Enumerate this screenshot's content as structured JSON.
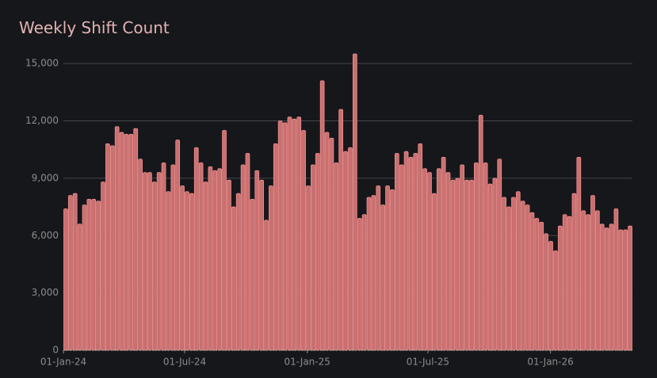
{
  "chart_data": {
    "type": "bar",
    "title": "Weekly Shift Count",
    "color": "#c96f6f",
    "edge_color": "#f29090",
    "grid": true,
    "x": [
      "2024-01-01",
      "2024-01-08",
      "2024-01-15",
      "2024-01-22",
      "2024-01-29",
      "2024-02-05",
      "2024-02-12",
      "2024-02-19",
      "2024-02-26",
      "2024-03-04",
      "2024-03-11",
      "2024-03-18",
      "2024-03-25",
      "2024-04-01",
      "2024-04-08",
      "2024-04-15",
      "2024-04-22",
      "2024-04-29",
      "2024-05-06",
      "2024-05-13",
      "2024-05-20",
      "2024-05-27",
      "2024-06-03",
      "2024-06-10",
      "2024-06-17",
      "2024-06-24",
      "2024-07-01",
      "2024-07-08",
      "2024-07-15",
      "2024-07-22",
      "2024-07-29",
      "2024-08-05",
      "2024-08-12",
      "2024-08-19",
      "2024-08-26",
      "2024-09-02",
      "2024-09-09",
      "2024-09-16",
      "2024-09-23",
      "2024-09-30",
      "2024-10-07",
      "2024-10-14",
      "2024-10-21",
      "2024-10-28",
      "2024-11-04",
      "2024-11-11",
      "2024-11-18",
      "2024-11-25",
      "2024-12-02",
      "2024-12-09",
      "2024-12-16",
      "2024-12-23",
      "2024-12-30",
      "2025-01-06",
      "2025-01-13",
      "2025-01-20",
      "2025-01-27",
      "2025-02-03",
      "2025-02-10",
      "2025-02-17",
      "2025-02-24",
      "2025-03-03",
      "2025-03-10",
      "2025-03-17",
      "2025-03-24",
      "2025-03-31",
      "2025-04-07",
      "2025-04-14",
      "2025-04-21",
      "2025-04-28",
      "2025-05-05",
      "2025-05-12",
      "2025-05-19",
      "2025-05-26",
      "2025-06-02",
      "2025-06-09",
      "2025-06-16",
      "2025-06-23",
      "2025-06-30",
      "2025-07-07",
      "2025-07-14",
      "2025-07-21",
      "2025-07-28",
      "2025-08-04",
      "2025-08-11",
      "2025-08-18",
      "2025-08-25",
      "2025-09-01",
      "2025-09-08",
      "2025-09-15",
      "2025-09-22",
      "2025-09-29",
      "2025-10-06",
      "2025-10-13",
      "2025-10-20",
      "2025-10-27",
      "2025-11-03",
      "2025-11-10",
      "2025-11-17",
      "2025-11-24",
      "2025-12-01",
      "2025-12-08",
      "2025-12-15",
      "2025-12-22",
      "2025-12-29",
      "2026-01-05",
      "2026-01-12",
      "2026-01-19",
      "2026-01-26",
      "2026-02-02",
      "2026-02-09",
      "2026-02-16",
      "2026-02-23",
      "2026-03-02",
      "2026-03-09",
      "2026-03-16",
      "2026-03-23",
      "2026-03-30",
      "2026-04-06",
      "2026-04-13",
      "2026-04-20",
      "2026-04-27"
    ],
    "values": [
      7400,
      8100,
      8200,
      6600,
      7600,
      7900,
      7900,
      7800,
      8800,
      10800,
      10700,
      11700,
      11400,
      11300,
      11300,
      11600,
      10000,
      9300,
      9300,
      8800,
      9300,
      9800,
      8300,
      9700,
      11000,
      8600,
      8300,
      8200,
      10600,
      9800,
      8800,
      9600,
      9400,
      9500,
      11500,
      8900,
      7500,
      8200,
      9700,
      10300,
      7900,
      9400,
      8900,
      6800,
      8600,
      10800,
      12000,
      11900,
      12200,
      12100,
      12200,
      11500,
      8600,
      9700,
      10300,
      14100,
      11400,
      11100,
      9800,
      12600,
      10400,
      10600,
      15500,
      6900,
      7100,
      8000,
      8100,
      8600,
      7600,
      8600,
      8400,
      10300,
      9700,
      10400,
      10100,
      10300,
      10800,
      9500,
      9300,
      8200,
      9500,
      10100,
      9300,
      8900,
      9000,
      9700,
      8900,
      8900,
      9800,
      12300,
      9800,
      8700,
      9000,
      10000,
      8000,
      7500,
      8000,
      8300,
      7800,
      7600,
      7200,
      6900,
      6700,
      6100,
      5700,
      5200,
      6500,
      7100,
      7000,
      8200,
      10100,
      7300,
      7100,
      8100,
      7300,
      6600,
      6400,
      6600,
      7400,
      6300,
      6300,
      6500
    ],
    "xlim": [
      "2024-01-01",
      "2026-05-04"
    ],
    "xticks": [
      {
        "value": "2024-01-01",
        "label": "01-Jan-24"
      },
      {
        "value": "2024-07-01",
        "label": "01-Jul-24"
      },
      {
        "value": "2025-01-01",
        "label": "01-Jan-25"
      },
      {
        "value": "2025-07-01",
        "label": "01-Jul-25"
      },
      {
        "value": "2026-01-01",
        "label": "01-Jan-26"
      }
    ],
    "ylim": [
      0,
      16000
    ],
    "yticks": [
      0,
      {
        "value": 3000,
        "label": "3,000"
      },
      {
        "value": 6000,
        "label": "6,000"
      },
      {
        "value": 9000,
        "label": "9,000"
      },
      {
        "value": 12000,
        "label": "12,000"
      },
      {
        "value": 15000,
        "label": "15,000"
      }
    ]
  }
}
